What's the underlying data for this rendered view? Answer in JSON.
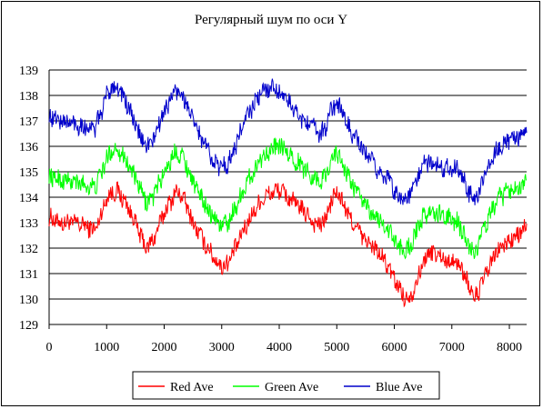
{
  "chart_data": {
    "type": "line",
    "title": "Регулярный шум по оси Y",
    "xlabel": "",
    "ylabel": "",
    "xlim": [
      0,
      8300
    ],
    "ylim": [
      129,
      139
    ],
    "xticks": [
      "0",
      "1000",
      "2000",
      "3000",
      "4000",
      "5000",
      "6000",
      "7000",
      "8000"
    ],
    "yticks": [
      "129",
      "130",
      "131",
      "132",
      "133",
      "134",
      "135",
      "136",
      "137",
      "138",
      "139"
    ],
    "grid": "horizontal",
    "legend_position": "bottom",
    "noise_amplitude": 0.35,
    "x": [
      0,
      200,
      400,
      600,
      800,
      900,
      1000,
      1100,
      1200,
      1300,
      1400,
      1500,
      1600,
      1700,
      1800,
      1900,
      2000,
      2100,
      2200,
      2300,
      2400,
      2500,
      2600,
      2700,
      2800,
      2900,
      3000,
      3100,
      3200,
      3300,
      3400,
      3500,
      3600,
      3700,
      3800,
      3900,
      4000,
      4100,
      4200,
      4300,
      4400,
      4500,
      4600,
      4700,
      4800,
      4900,
      5000,
      5100,
      5200,
      5300,
      5400,
      5500,
      5600,
      5700,
      5800,
      5900,
      6000,
      6100,
      6200,
      6300,
      6400,
      6500,
      6600,
      6700,
      6800,
      6900,
      7000,
      7100,
      7200,
      7300,
      7400,
      7500,
      7600,
      7700,
      7800,
      7900,
      8000,
      8100,
      8200,
      8300
    ],
    "series": [
      {
        "name": "Red Ave",
        "color": "#ff0000",
        "values": [
          133.2,
          133.0,
          133.0,
          132.9,
          132.7,
          133.3,
          134.0,
          134.2,
          134.2,
          133.9,
          133.5,
          133.0,
          132.4,
          132.0,
          132.3,
          132.8,
          133.4,
          133.8,
          134.2,
          134.1,
          133.6,
          133.0,
          132.6,
          132.2,
          131.9,
          131.5,
          131.3,
          131.4,
          131.8,
          132.3,
          132.8,
          133.2,
          133.6,
          133.9,
          134.1,
          134.2,
          134.3,
          134.1,
          133.9,
          133.7,
          133.5,
          133.3,
          133.0,
          132.9,
          133.1,
          133.8,
          134.2,
          133.8,
          133.3,
          132.9,
          132.6,
          132.3,
          132.1,
          131.9,
          131.6,
          131.2,
          130.8,
          130.4,
          130.0,
          130.2,
          130.8,
          131.4,
          131.8,
          131.8,
          131.7,
          131.5,
          131.5,
          131.4,
          131.1,
          130.5,
          130.0,
          130.5,
          131.0,
          131.5,
          131.9,
          132.1,
          132.3,
          132.4,
          132.6,
          132.8
        ]
      },
      {
        "name": "Green Ave",
        "color": "#00ff00",
        "values": [
          134.8,
          134.7,
          134.6,
          134.5,
          134.4,
          134.9,
          135.5,
          135.9,
          135.9,
          135.6,
          135.2,
          134.7,
          134.2,
          133.8,
          134.0,
          134.5,
          135.0,
          135.4,
          135.8,
          135.7,
          135.2,
          134.6,
          134.2,
          133.8,
          133.4,
          133.1,
          132.9,
          133.0,
          133.4,
          133.9,
          134.4,
          134.8,
          135.2,
          135.6,
          135.8,
          135.9,
          136.0,
          135.8,
          135.6,
          135.4,
          135.2,
          135.0,
          134.8,
          134.6,
          134.8,
          135.5,
          135.8,
          135.3,
          134.8,
          134.4,
          134.0,
          133.7,
          133.4,
          133.2,
          133.0,
          132.7,
          132.3,
          132.0,
          131.9,
          132.2,
          132.7,
          133.2,
          133.4,
          133.4,
          133.3,
          133.2,
          133.1,
          133.0,
          132.6,
          132.1,
          131.8,
          132.4,
          133.0,
          133.5,
          133.9,
          134.1,
          134.3,
          134.4,
          134.5,
          134.6
        ]
      },
      {
        "name": "Blue Ave",
        "color": "#0000cc",
        "values": [
          137.2,
          137.0,
          136.9,
          136.8,
          136.7,
          137.3,
          138.0,
          138.4,
          138.3,
          137.9,
          137.4,
          136.8,
          136.3,
          136.0,
          136.2,
          136.8,
          137.4,
          137.8,
          138.2,
          138.1,
          137.6,
          137.0,
          136.5,
          136.1,
          135.7,
          135.3,
          135.2,
          135.3,
          135.8,
          136.4,
          137.0,
          137.4,
          137.8,
          138.1,
          138.3,
          138.3,
          138.2,
          137.9,
          137.6,
          137.3,
          137.1,
          136.9,
          136.7,
          136.5,
          136.7,
          137.4,
          137.7,
          137.3,
          136.8,
          136.4,
          136.0,
          135.7,
          135.4,
          135.1,
          134.9,
          134.7,
          134.3,
          134.0,
          133.9,
          134.2,
          134.8,
          135.3,
          135.4,
          135.3,
          135.2,
          135.2,
          135.2,
          135.1,
          134.7,
          134.2,
          133.9,
          134.4,
          135.0,
          135.6,
          135.9,
          136.1,
          136.2,
          136.3,
          136.4,
          136.5
        ]
      }
    ]
  }
}
